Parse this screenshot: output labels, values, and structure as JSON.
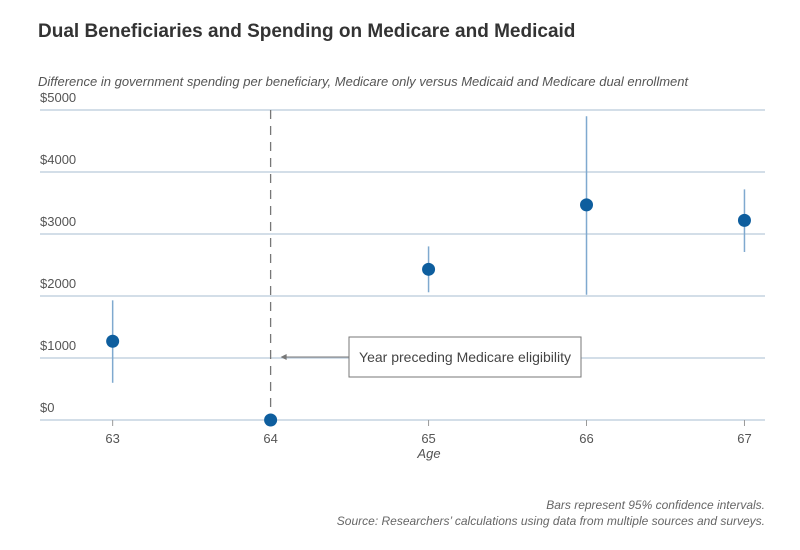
{
  "chart_data": {
    "type": "errorbar-scatter",
    "title": "Dual Beneficiaries and Spending on Medicare and Medicaid",
    "subtitle": "Difference in government spending per beneficiary, Medicare only versus Medicaid and Medicare dual enrollment",
    "x_label": "Age",
    "x": [
      63,
      64,
      65,
      66,
      67
    ],
    "values": [
      1270,
      0,
      2430,
      3470,
      3220
    ],
    "ci_low": [
      600,
      null,
      2060,
      2020,
      2710
    ],
    "ci_high": [
      1930,
      null,
      2800,
      4900,
      3720
    ],
    "color": "#0e5e9e",
    "bar_color": "#7fa9cf",
    "xlim": [
      62.54,
      67.13
    ],
    "ylim": [
      0,
      5000
    ],
    "xticks": [
      63,
      64,
      65,
      66,
      67
    ],
    "yticks": [
      {
        "value": 0,
        "label": "$0"
      },
      {
        "value": 1000,
        "label": "$1000"
      },
      {
        "value": 2000,
        "label": "$2000"
      },
      {
        "value": 3000,
        "label": "$3000"
      },
      {
        "value": 4000,
        "label": "$4000"
      },
      {
        "value": 5000,
        "label": "$5000"
      }
    ],
    "grid": true,
    "annotation": "Year preceding Medicare eligibility",
    "notes": [
      "Bars represent 95% confidence intervals.",
      "Source: Researchers’ calculations using data from multiple sources and surveys."
    ]
  }
}
